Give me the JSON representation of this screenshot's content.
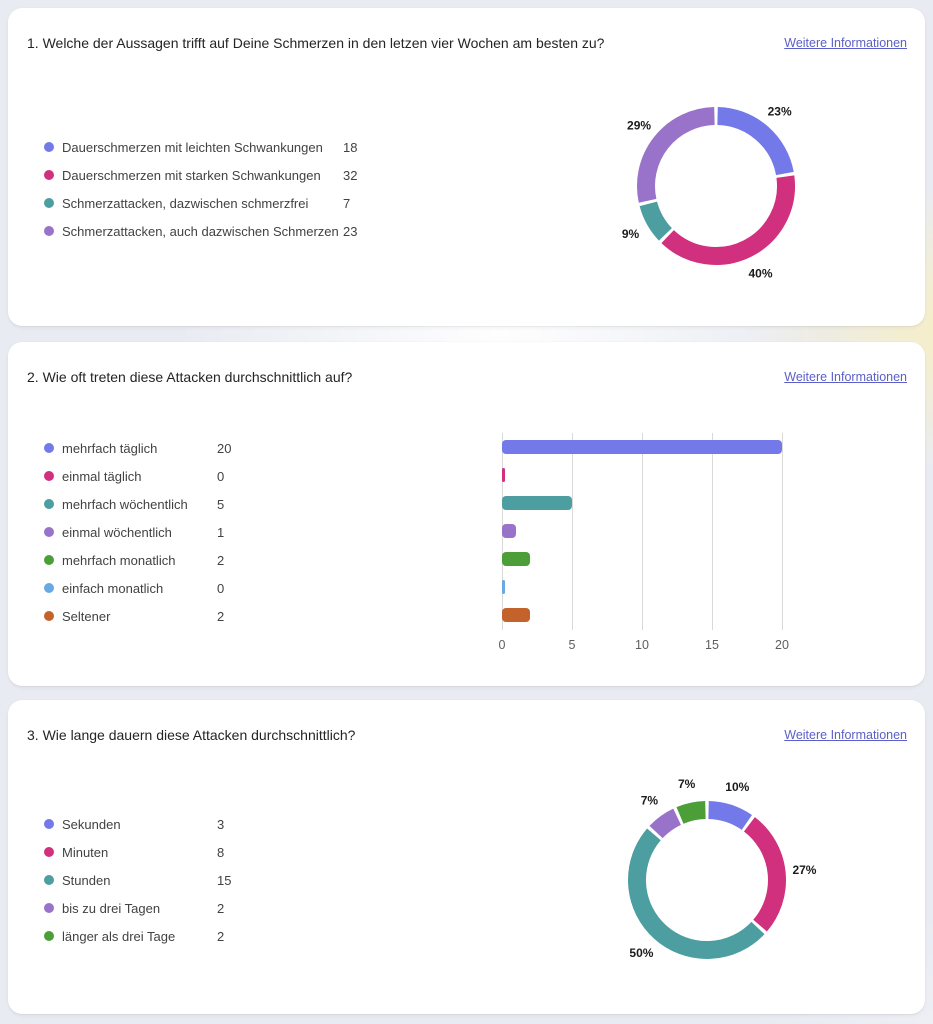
{
  "palette": {
    "blue": "#7379E8",
    "pink": "#D0307E",
    "teal": "#4D9EA0",
    "purple": "#9873C9",
    "green": "#4C9F38",
    "light_blue": "#69A9E3",
    "orange": "#C4622B"
  },
  "link_color": "#5B5FC7",
  "questions": [
    {
      "title": "1. Welche der Aussagen trifft auf Deine Schmerzen in den letzen vier Wochen am besten zu?",
      "more_info_label": "Weitere Informationen",
      "legend": [
        {
          "label": "Dauerschmerzen mit leichten Schwankungen",
          "value": "18",
          "color": "blue"
        },
        {
          "label": "Dauerschmerzen mit starken Schwankungen",
          "value": "32",
          "color": "pink"
        },
        {
          "label": "Schmerzattacken, dazwischen schmerzfrei",
          "value": "7",
          "color": "teal"
        },
        {
          "label": "Schmerzattacken, auch dazwischen Schmerzen",
          "value": "23",
          "color": "purple"
        }
      ]
    },
    {
      "title": "2. Wie oft treten diese Attacken durchschnittlich auf?",
      "more_info_label": "Weitere Informationen",
      "legend": [
        {
          "label": "mehrfach täglich",
          "value": "20",
          "color": "blue"
        },
        {
          "label": "einmal täglich",
          "value": "0",
          "color": "pink"
        },
        {
          "label": "mehrfach wöchentlich",
          "value": "5",
          "color": "teal"
        },
        {
          "label": "einmal wöchentlich",
          "value": "1",
          "color": "purple"
        },
        {
          "label": "mehrfach monatlich",
          "value": "2",
          "color": "green"
        },
        {
          "label": "einfach monatlich",
          "value": "0",
          "color": "light_blue"
        },
        {
          "label": "Seltener",
          "value": "2",
          "color": "orange"
        }
      ]
    },
    {
      "title": "3. Wie lange dauern diese Attacken durchschnittlich?",
      "more_info_label": "Weitere Informationen",
      "legend": [
        {
          "label": "Sekunden",
          "value": "3",
          "color": "blue"
        },
        {
          "label": "Minuten",
          "value": "8",
          "color": "pink"
        },
        {
          "label": "Stunden",
          "value": "15",
          "color": "teal"
        },
        {
          "label": "bis zu drei Tagen",
          "value": "2",
          "color": "purple"
        },
        {
          "label": "länger als drei Tage",
          "value": "2",
          "color": "green"
        }
      ]
    }
  ],
  "chart_data": [
    {
      "type": "pie",
      "subtype": "donut",
      "title": "1. Welche der Aussagen trifft auf Deine Schmerzen in den letzen vier Wochen am besten zu?",
      "categories": [
        "Dauerschmerzen mit leichten Schwankungen",
        "Dauerschmerzen mit starken Schwankungen",
        "Schmerzattacken, dazwischen schmerzfrei",
        "Schmerzattacken, auch dazwischen Schmerzen"
      ],
      "values": [
        18,
        32,
        7,
        23
      ],
      "percent_labels": [
        "23%",
        "40%",
        "9%",
        "29%"
      ],
      "colors": [
        "blue",
        "pink",
        "teal",
        "purple"
      ],
      "start_angle_deg": 0,
      "direction": "clockwise",
      "legend_position": "left"
    },
    {
      "type": "bar",
      "orientation": "horizontal",
      "title": "2. Wie oft treten diese Attacken durchschnittlich auf?",
      "categories": [
        "mehrfach täglich",
        "einmal täglich",
        "mehrfach wöchentlich",
        "einmal wöchentlich",
        "mehrfach monatlich",
        "einfach monatlich",
        "Seltener"
      ],
      "values": [
        20,
        0,
        5,
        1,
        2,
        0,
        2
      ],
      "colors": [
        "blue",
        "pink",
        "teal",
        "purple",
        "green",
        "light_blue",
        "orange"
      ],
      "x_ticks": [
        0,
        5,
        10,
        15,
        20
      ],
      "xlim": [
        0,
        25
      ],
      "grid": true,
      "legend_position": "left"
    },
    {
      "type": "pie",
      "subtype": "donut",
      "title": "3. Wie lange dauern diese Attacken durchschnittlich?",
      "categories": [
        "Sekunden",
        "Minuten",
        "Stunden",
        "bis zu drei Tagen",
        "länger als drei Tage"
      ],
      "values": [
        3,
        8,
        15,
        2,
        2
      ],
      "percent_labels": [
        "10%",
        "27%",
        "50%",
        "7%",
        "7%"
      ],
      "colors": [
        "blue",
        "pink",
        "teal",
        "purple",
        "green"
      ],
      "start_angle_deg": 0,
      "direction": "clockwise",
      "legend_position": "left"
    }
  ]
}
